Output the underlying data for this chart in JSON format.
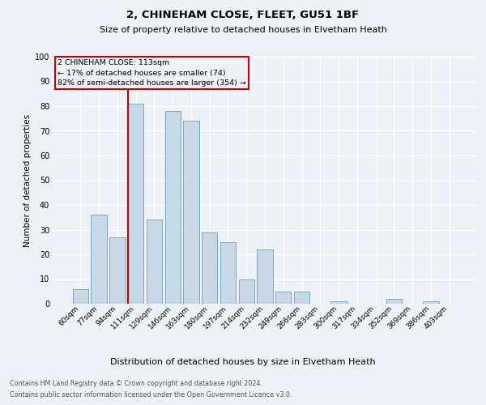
{
  "title1": "2, CHINEHAM CLOSE, FLEET, GU51 1BF",
  "title2": "Size of property relative to detached houses in Elvetham Heath",
  "xlabel": "Distribution of detached houses by size in Elvetham Heath",
  "ylabel": "Number of detached properties",
  "footnote1": "Contains HM Land Registry data © Crown copyright and database right 2024.",
  "footnote2": "Contains public sector information licensed under the Open Government Licence v3.0.",
  "categories": [
    "60sqm",
    "77sqm",
    "94sqm",
    "111sqm",
    "129sqm",
    "146sqm",
    "163sqm",
    "180sqm",
    "197sqm",
    "214sqm",
    "232sqm",
    "249sqm",
    "266sqm",
    "283sqm",
    "300sqm",
    "317sqm",
    "334sqm",
    "352sqm",
    "369sqm",
    "386sqm",
    "403sqm"
  ],
  "values": [
    6,
    36,
    27,
    81,
    34,
    78,
    74,
    29,
    25,
    10,
    22,
    5,
    5,
    0,
    1,
    0,
    0,
    2,
    0,
    1,
    0
  ],
  "bar_color": "#c8d8e8",
  "bar_edge_color": "#7aaabf",
  "property_line_index": 3,
  "annotation_title": "2 CHINEHAM CLOSE: 113sqm",
  "annotation_line1": "← 17% of detached houses are smaller (74)",
  "annotation_line2": "82% of semi-detached houses are larger (354) →",
  "annotation_box_color": "#cc0000",
  "background_color": "#eef2f7",
  "ylim": [
    0,
    100
  ],
  "yticks": [
    0,
    10,
    20,
    30,
    40,
    50,
    60,
    70,
    80,
    90,
    100
  ],
  "title1_fontsize": 9.5,
  "title2_fontsize": 8,
  "ylabel_fontsize": 7.5,
  "xlabel_fontsize": 8,
  "tick_fontsize": 6.5,
  "footnote_fontsize": 5.8
}
